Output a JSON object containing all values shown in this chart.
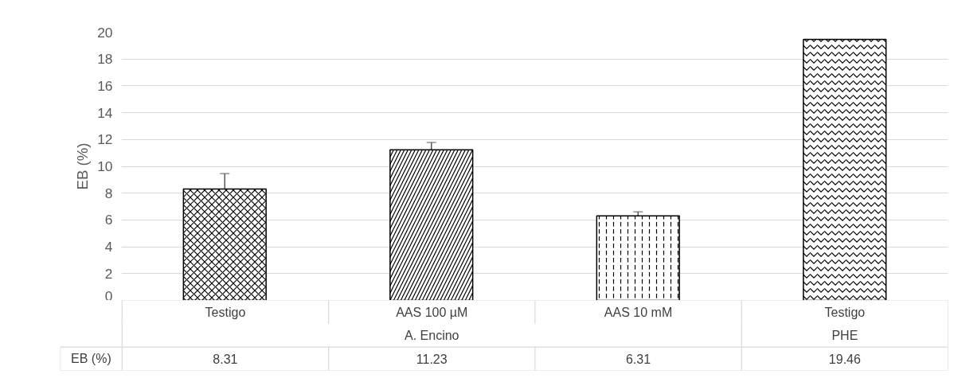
{
  "chart_data": {
    "type": "bar",
    "ylabel": "EB (%)",
    "categories": [
      "Testigo",
      "AAS 100 µM",
      "AAS 10 mM",
      "Testigo"
    ],
    "series": [
      {
        "name": "EB (%)",
        "color": "#000000",
        "values": [
          8.31,
          11.23,
          6.31,
          19.46
        ],
        "errors": [
          1.15,
          0.55,
          0.3,
          null
        ]
      }
    ],
    "annotations": [
      "A. Encino",
      "PHE"
    ],
    "ylim": [
      0,
      20
    ],
    "yticks": [
      0,
      2,
      4,
      6,
      8,
      10,
      12,
      14,
      16,
      18,
      20
    ],
    "grid": "y",
    "data_labels": true
  }
}
